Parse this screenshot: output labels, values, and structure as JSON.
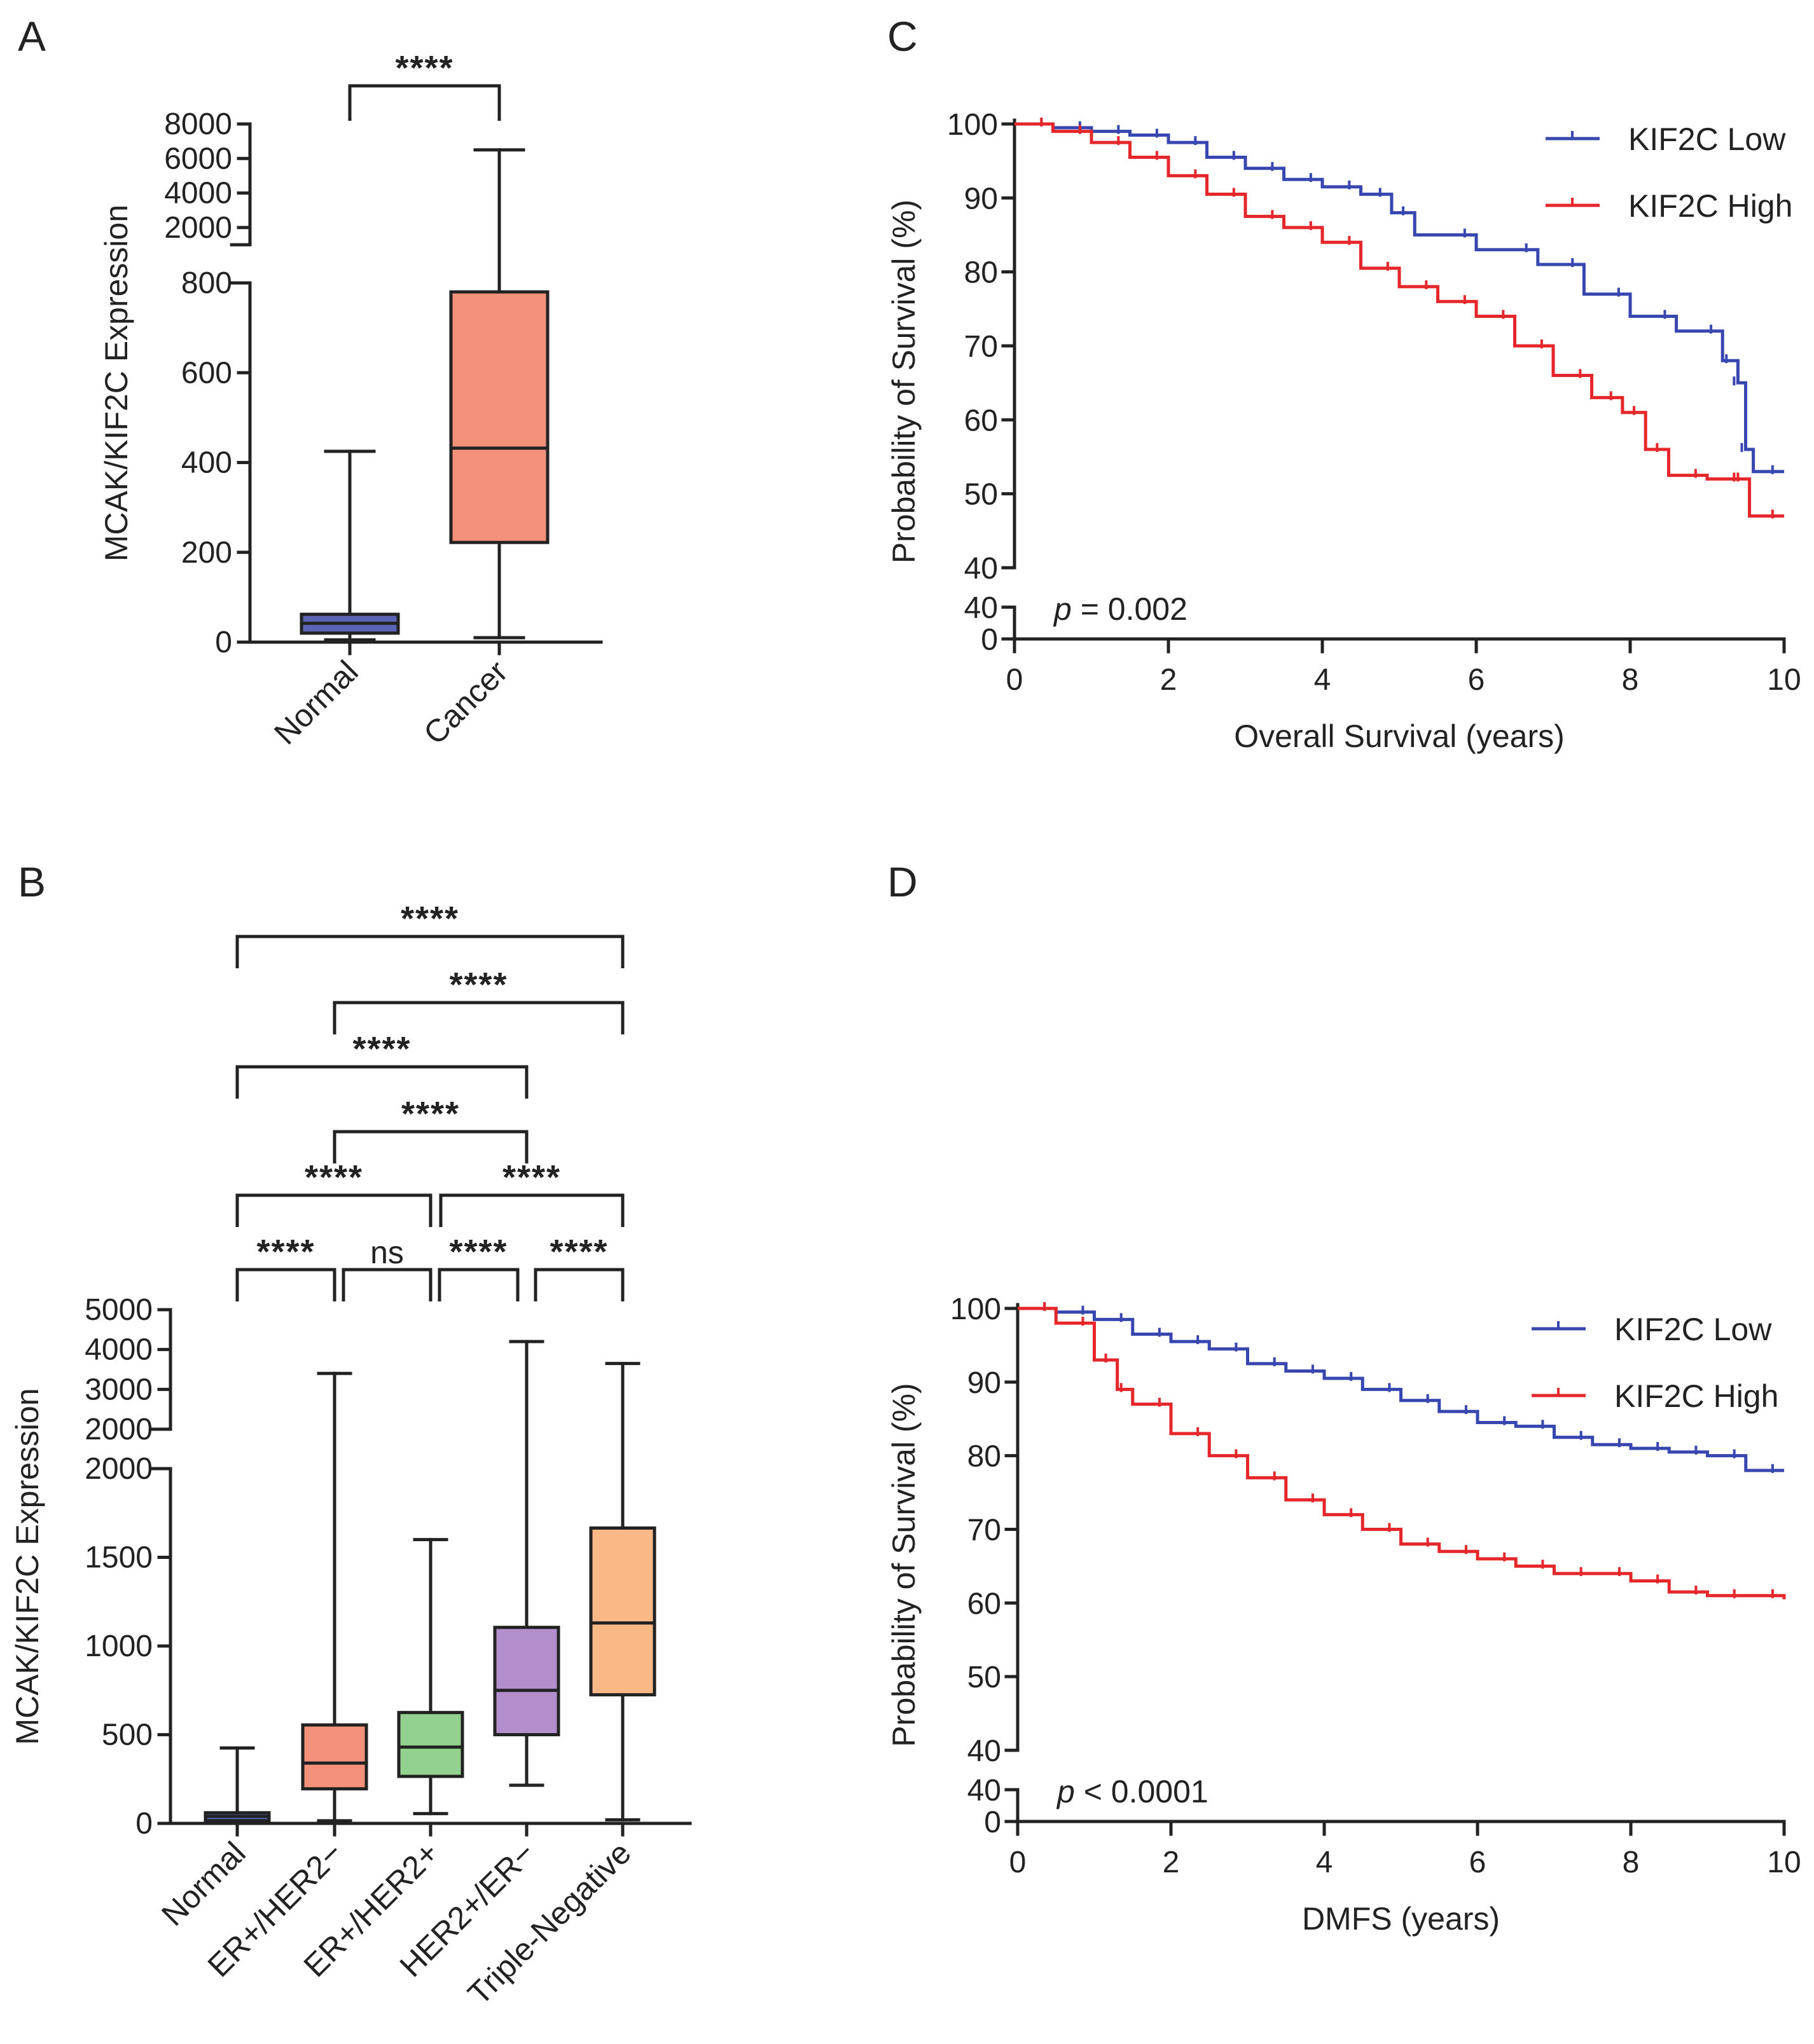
{
  "colors": {
    "normal": "#5a63b4",
    "er_pos_her2_neg": "#f4917a",
    "er_pos_her2_pos": "#93d28e",
    "her2_pos_er_neg": "#b28ecc",
    "triple_negative": "#fab887",
    "cancer": "#f4917a",
    "kif2c_low": "#3846b0",
    "kif2c_high": "#e5262a"
  },
  "chart_data": [
    {
      "panel": "A",
      "type": "boxplot",
      "ylabel": "MCAK/KIF2C Expression",
      "y_axis_break": {
        "lower_ticks": [
          "0",
          "200",
          "400",
          "600",
          "800"
        ],
        "upper_ticks": [
          "2000",
          "4000",
          "6000",
          "8000"
        ]
      },
      "categories": [
        "Normal",
        "Cancer"
      ],
      "boxes": [
        {
          "name": "Normal",
          "min": 5,
          "q1": 20,
          "median": 42,
          "q3": 62,
          "max": 425
        },
        {
          "name": "Cancer",
          "min": 10,
          "q1": 222,
          "median": 432,
          "q3": 780,
          "max": 6500
        }
      ],
      "significance": [
        {
          "from": "Normal",
          "to": "Cancer",
          "label": "****"
        }
      ]
    },
    {
      "panel": "B",
      "type": "boxplot",
      "ylabel": "MCAK/KIF2C Expression",
      "y_axis_break": {
        "lower_ticks": [
          "0",
          "500",
          "1000",
          "1500",
          "2000"
        ],
        "upper_ticks": [
          "2000",
          "3000",
          "4000",
          "5000"
        ]
      },
      "categories": [
        "Normal",
        "ER+/HER2−",
        "ER+/HER2+",
        "HER2+/ER−",
        "Triple-Negative"
      ],
      "boxes": [
        {
          "name": "Normal",
          "min": 5,
          "q1": 15,
          "median": 40,
          "q3": 60,
          "max": 425
        },
        {
          "name": "ER+/HER2−",
          "min": 15,
          "q1": 195,
          "median": 340,
          "q3": 555,
          "max": 3400
        },
        {
          "name": "ER+/HER2+",
          "min": 55,
          "q1": 265,
          "median": 430,
          "q3": 625,
          "max": 1600
        },
        {
          "name": "HER2+/ER−",
          "min": 215,
          "q1": 500,
          "median": 750,
          "q3": 1105,
          "max": 4200
        },
        {
          "name": "Triple-Negative",
          "min": 20,
          "q1": 725,
          "median": 1130,
          "q3": 1665,
          "max": 3650
        }
      ],
      "significance": [
        {
          "from": "Normal",
          "to": "Triple-Negative",
          "label": "****"
        },
        {
          "from": "ER+/HER2−",
          "to": "Triple-Negative",
          "label": "****"
        },
        {
          "from": "Normal",
          "to": "HER2+/ER−",
          "label": "****"
        },
        {
          "from": "ER+/HER2−",
          "to": "HER2+/ER−",
          "label": "****"
        },
        {
          "from": "Normal",
          "to": "ER+/HER2+",
          "label": "****"
        },
        {
          "from": "ER+/HER2+",
          "to": "Triple-Negative",
          "label": "****"
        },
        {
          "from": "Normal",
          "to": "ER+/HER2−",
          "label": "****"
        },
        {
          "from": "ER+/HER2−",
          "to": "ER+/HER2+",
          "label": "ns"
        },
        {
          "from": "ER+/HER2+",
          "to": "HER2+/ER−",
          "label": "****"
        },
        {
          "from": "HER2+/ER−",
          "to": "Triple-Negative",
          "label": "****"
        }
      ]
    },
    {
      "panel": "C",
      "type": "line",
      "subtype": "kaplan-meier",
      "xlabel": "Overall Survival (years)",
      "ylabel": "Probability of Survival (%)",
      "xlim": [
        0,
        10
      ],
      "x_ticks": [
        "0",
        "2",
        "4",
        "6",
        "8",
        "10"
      ],
      "y_ticks": [
        "0",
        "40",
        "40",
        "50",
        "60",
        "70",
        "80",
        "90",
        "100"
      ],
      "p_prefix": "p",
      "p_value": "= 0.002",
      "series": [
        {
          "name": "KIF2C Low",
          "points": [
            [
              0,
              100
            ],
            [
              0.5,
              99.5
            ],
            [
              1,
              99
            ],
            [
              1.5,
              98.5
            ],
            [
              2,
              97.5
            ],
            [
              2.5,
              95.5
            ],
            [
              3,
              94
            ],
            [
              3.5,
              92.5
            ],
            [
              4,
              91.5
            ],
            [
              4.5,
              90.5
            ],
            [
              4.9,
              88
            ],
            [
              5.2,
              85
            ],
            [
              6,
              83
            ],
            [
              6.8,
              81
            ],
            [
              7.4,
              77
            ],
            [
              8,
              74
            ],
            [
              8.6,
              72
            ],
            [
              9.2,
              68
            ],
            [
              9.4,
              65
            ],
            [
              9.5,
              56
            ],
            [
              9.6,
              53
            ],
            [
              10,
              53
            ]
          ]
        },
        {
          "name": "KIF2C High",
          "points": [
            [
              0,
              100
            ],
            [
              0.5,
              99
            ],
            [
              1,
              97.5
            ],
            [
              1.5,
              95.5
            ],
            [
              2,
              93
            ],
            [
              2.5,
              90.5
            ],
            [
              3,
              87.5
            ],
            [
              3.5,
              86
            ],
            [
              4,
              84
            ],
            [
              4.5,
              80.5
            ],
            [
              5,
              78
            ],
            [
              5.5,
              76
            ],
            [
              6,
              74
            ],
            [
              6.5,
              70
            ],
            [
              7,
              66
            ],
            [
              7.5,
              63
            ],
            [
              7.9,
              61
            ],
            [
              8.2,
              56
            ],
            [
              8.5,
              52.5
            ],
            [
              9,
              52
            ],
            [
              9.5,
              52
            ],
            [
              9.55,
              47
            ],
            [
              10,
              47
            ]
          ]
        }
      ]
    },
    {
      "panel": "D",
      "type": "line",
      "subtype": "kaplan-meier",
      "xlabel": "DMFS (years)",
      "ylabel": "Probability of Survival (%)",
      "xlim": [
        0,
        10
      ],
      "x_ticks": [
        "0",
        "2",
        "4",
        "6",
        "8",
        "10"
      ],
      "y_ticks": [
        "0",
        "40",
        "40",
        "50",
        "60",
        "70",
        "80",
        "90",
        "100"
      ],
      "p_prefix": "p",
      "p_value": "< 0.0001",
      "series": [
        {
          "name": "KIF2C Low",
          "points": [
            [
              0,
              100
            ],
            [
              0.5,
              99.5
            ],
            [
              1,
              98.5
            ],
            [
              1.5,
              96.5
            ],
            [
              2,
              95.5
            ],
            [
              2.5,
              94.5
            ],
            [
              3,
              92.5
            ],
            [
              3.5,
              91.5
            ],
            [
              4,
              90.5
            ],
            [
              4.5,
              89
            ],
            [
              5,
              87.5
            ],
            [
              5.5,
              86
            ],
            [
              6,
              84.5
            ],
            [
              6.5,
              84
            ],
            [
              7,
              82.5
            ],
            [
              7.5,
              81.5
            ],
            [
              8,
              81
            ],
            [
              8.5,
              80.5
            ],
            [
              9,
              80
            ],
            [
              9.5,
              78
            ],
            [
              10,
              78
            ]
          ]
        },
        {
          "name": "KIF2C High",
          "points": [
            [
              0,
              100
            ],
            [
              0.5,
              98
            ],
            [
              1,
              93
            ],
            [
              1.3,
              89
            ],
            [
              1.5,
              87
            ],
            [
              2,
              83
            ],
            [
              2.5,
              80
            ],
            [
              3,
              77
            ],
            [
              3.5,
              74
            ],
            [
              4,
              72
            ],
            [
              4.5,
              70
            ],
            [
              5,
              68
            ],
            [
              5.5,
              67
            ],
            [
              6,
              66
            ],
            [
              6.5,
              65
            ],
            [
              7,
              64
            ],
            [
              7.5,
              64
            ],
            [
              8,
              63
            ],
            [
              8.5,
              61.5
            ],
            [
              9,
              61
            ],
            [
              9.5,
              61
            ],
            [
              10,
              60.5
            ]
          ]
        }
      ]
    }
  ]
}
